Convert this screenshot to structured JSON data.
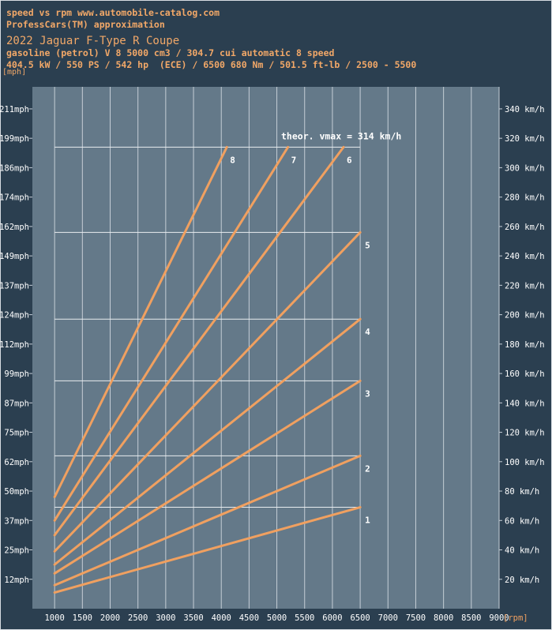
{
  "header": {
    "line1": "speed vs rpm www.automobile-catalog.com",
    "line2": "ProfessCars(TM) approximation",
    "title": "2022 Jaguar F-Type R Coupe",
    "line4": "gasoline (petrol) V 8 5000 cm3 / 304.7 cui automatic 8 speed",
    "line5": "404.5 kW / 550 PS / 542 hp  (ECE) / 6500 680 Nm / 501.5 ft-lb / 2500 - 5500"
  },
  "chart_data": {
    "type": "line",
    "title": "2022 Jaguar F-Type R Coupe",
    "xlabel": "[rpm]",
    "ylabel": "[mph]",
    "xlim": [
      600,
      9000
    ],
    "ylim": [
      0,
      355
    ],
    "y_unit_right": "km/h",
    "x_ticks": [
      1000,
      1500,
      2000,
      2500,
      3000,
      3500,
      4000,
      4500,
      5000,
      5500,
      6000,
      6500,
      7000,
      7500,
      8000,
      8500,
      9000
    ],
    "mph_ticks": [
      "12mph",
      "25mph",
      "37mph",
      "50mph",
      "62mph",
      "75mph",
      "87mph",
      "99mph",
      "112mph",
      "124mph",
      "137mph",
      "149mph",
      "162mph",
      "174mph",
      "186mph",
      "199mph",
      "211mph"
    ],
    "kmh_ticks": [
      "20 km/h",
      "40 km/h",
      "60 km/h",
      "80 km/h",
      "100 km/h",
      "120 km/h",
      "140 km/h",
      "160 km/h",
      "180 km/h",
      "200 km/h",
      "220 km/h",
      "240 km/h",
      "260 km/h",
      "280 km/h",
      "300 km/h",
      "320 km/h",
      "340 km/h"
    ],
    "annotation": "theor. vmax = 314 km/h",
    "vmax_kmh": 314,
    "grid": true,
    "series": [
      {
        "name": "1",
        "x": [
          1000,
          6500
        ],
        "y": [
          11,
          69
        ]
      },
      {
        "name": "2",
        "x": [
          1000,
          6500
        ],
        "y": [
          16,
          104
        ]
      },
      {
        "name": "3",
        "x": [
          1000,
          6500
        ],
        "y": [
          24,
          155
        ]
      },
      {
        "name": "4",
        "x": [
          1000,
          6500
        ],
        "y": [
          30,
          197
        ]
      },
      {
        "name": "5",
        "x": [
          1000,
          6500
        ],
        "y": [
          39,
          256
        ]
      },
      {
        "name": "6",
        "x": [
          1000,
          6200
        ],
        "y": [
          50,
          314
        ]
      },
      {
        "name": "7",
        "x": [
          1000,
          5200
        ],
        "y": [
          60,
          314
        ]
      },
      {
        "name": "8",
        "x": [
          1000,
          4100
        ],
        "y": [
          76,
          314
        ]
      }
    ],
    "shift_speeds_kmh": [
      69,
      104,
      155,
      197,
      256,
      314
    ],
    "line_color": "#f0a060",
    "plot_bg": "#647989",
    "page_bg": "#2b3f50",
    "label_color": "#ffffff"
  }
}
